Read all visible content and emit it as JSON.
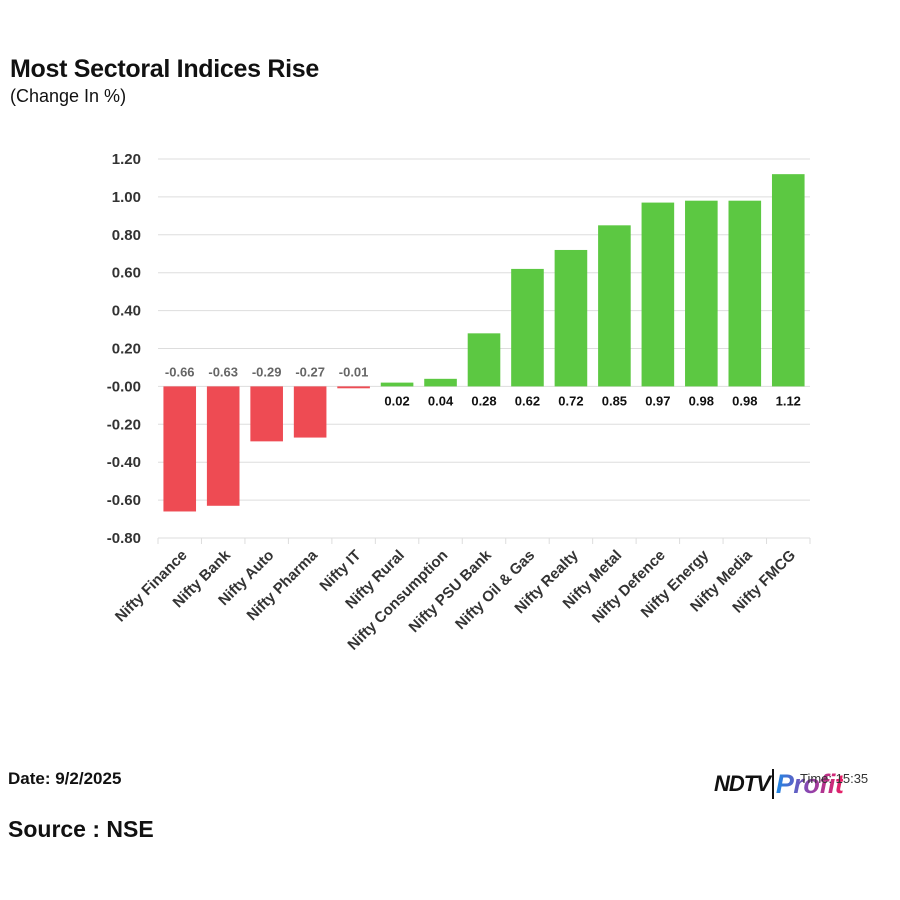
{
  "header": {
    "title": "Most Sectoral Indices Rise",
    "subtitle": "(Change In %)"
  },
  "footer": {
    "date": "Date: 9/2/2025",
    "source": "Source : NSE"
  },
  "logo": {
    "ndtv": "NDTV",
    "time": "Time: 15:35",
    "profit": "Profit"
  },
  "colors": {
    "positive": "#5cc842",
    "negative": "#ee4b53",
    "grid": "#dddddd",
    "axis_text": "#333333"
  },
  "chart_data": {
    "type": "bar",
    "title": "Most Sectoral Indices Rise",
    "subtitle": "(Change In %)",
    "xlabel": "",
    "ylabel": "",
    "ylim": [
      -0.8,
      1.2
    ],
    "yticks": [
      1.2,
      1.0,
      0.8,
      0.6,
      0.4,
      0.2,
      0.0,
      -0.2,
      -0.4,
      -0.6,
      -0.8
    ],
    "ytick_labels": [
      "1.20",
      "1.00",
      "0.80",
      "0.60",
      "0.40",
      "0.20",
      "-0.00",
      "-0.20",
      "-0.40",
      "-0.60",
      "-0.80"
    ],
    "grid": true,
    "categories": [
      "Nifty Finance",
      "Nifty Bank",
      "Nifty Auto",
      "Nifty Pharma",
      "Nifty IT",
      "Nifty Rural",
      "Nifty Consumption",
      "Nifty PSU Bank",
      "Nifty Oil & Gas",
      "Nifty Realty",
      "Nifty Metal",
      "Nifty Defence",
      "Nifty Energy",
      "Nifty Media",
      "Nifty FMCG"
    ],
    "values": [
      -0.66,
      -0.63,
      -0.29,
      -0.27,
      -0.01,
      0.02,
      0.04,
      0.28,
      0.62,
      0.72,
      0.85,
      0.97,
      0.98,
      0.98,
      1.12
    ],
    "data_labels": [
      "-0.66",
      "-0.63",
      "-0.29",
      "-0.27",
      "-0.01",
      "0.02",
      "0.04",
      "0.28",
      "0.62",
      "0.72",
      "0.85",
      "0.97",
      "0.98",
      "0.98",
      "1.12"
    ]
  }
}
